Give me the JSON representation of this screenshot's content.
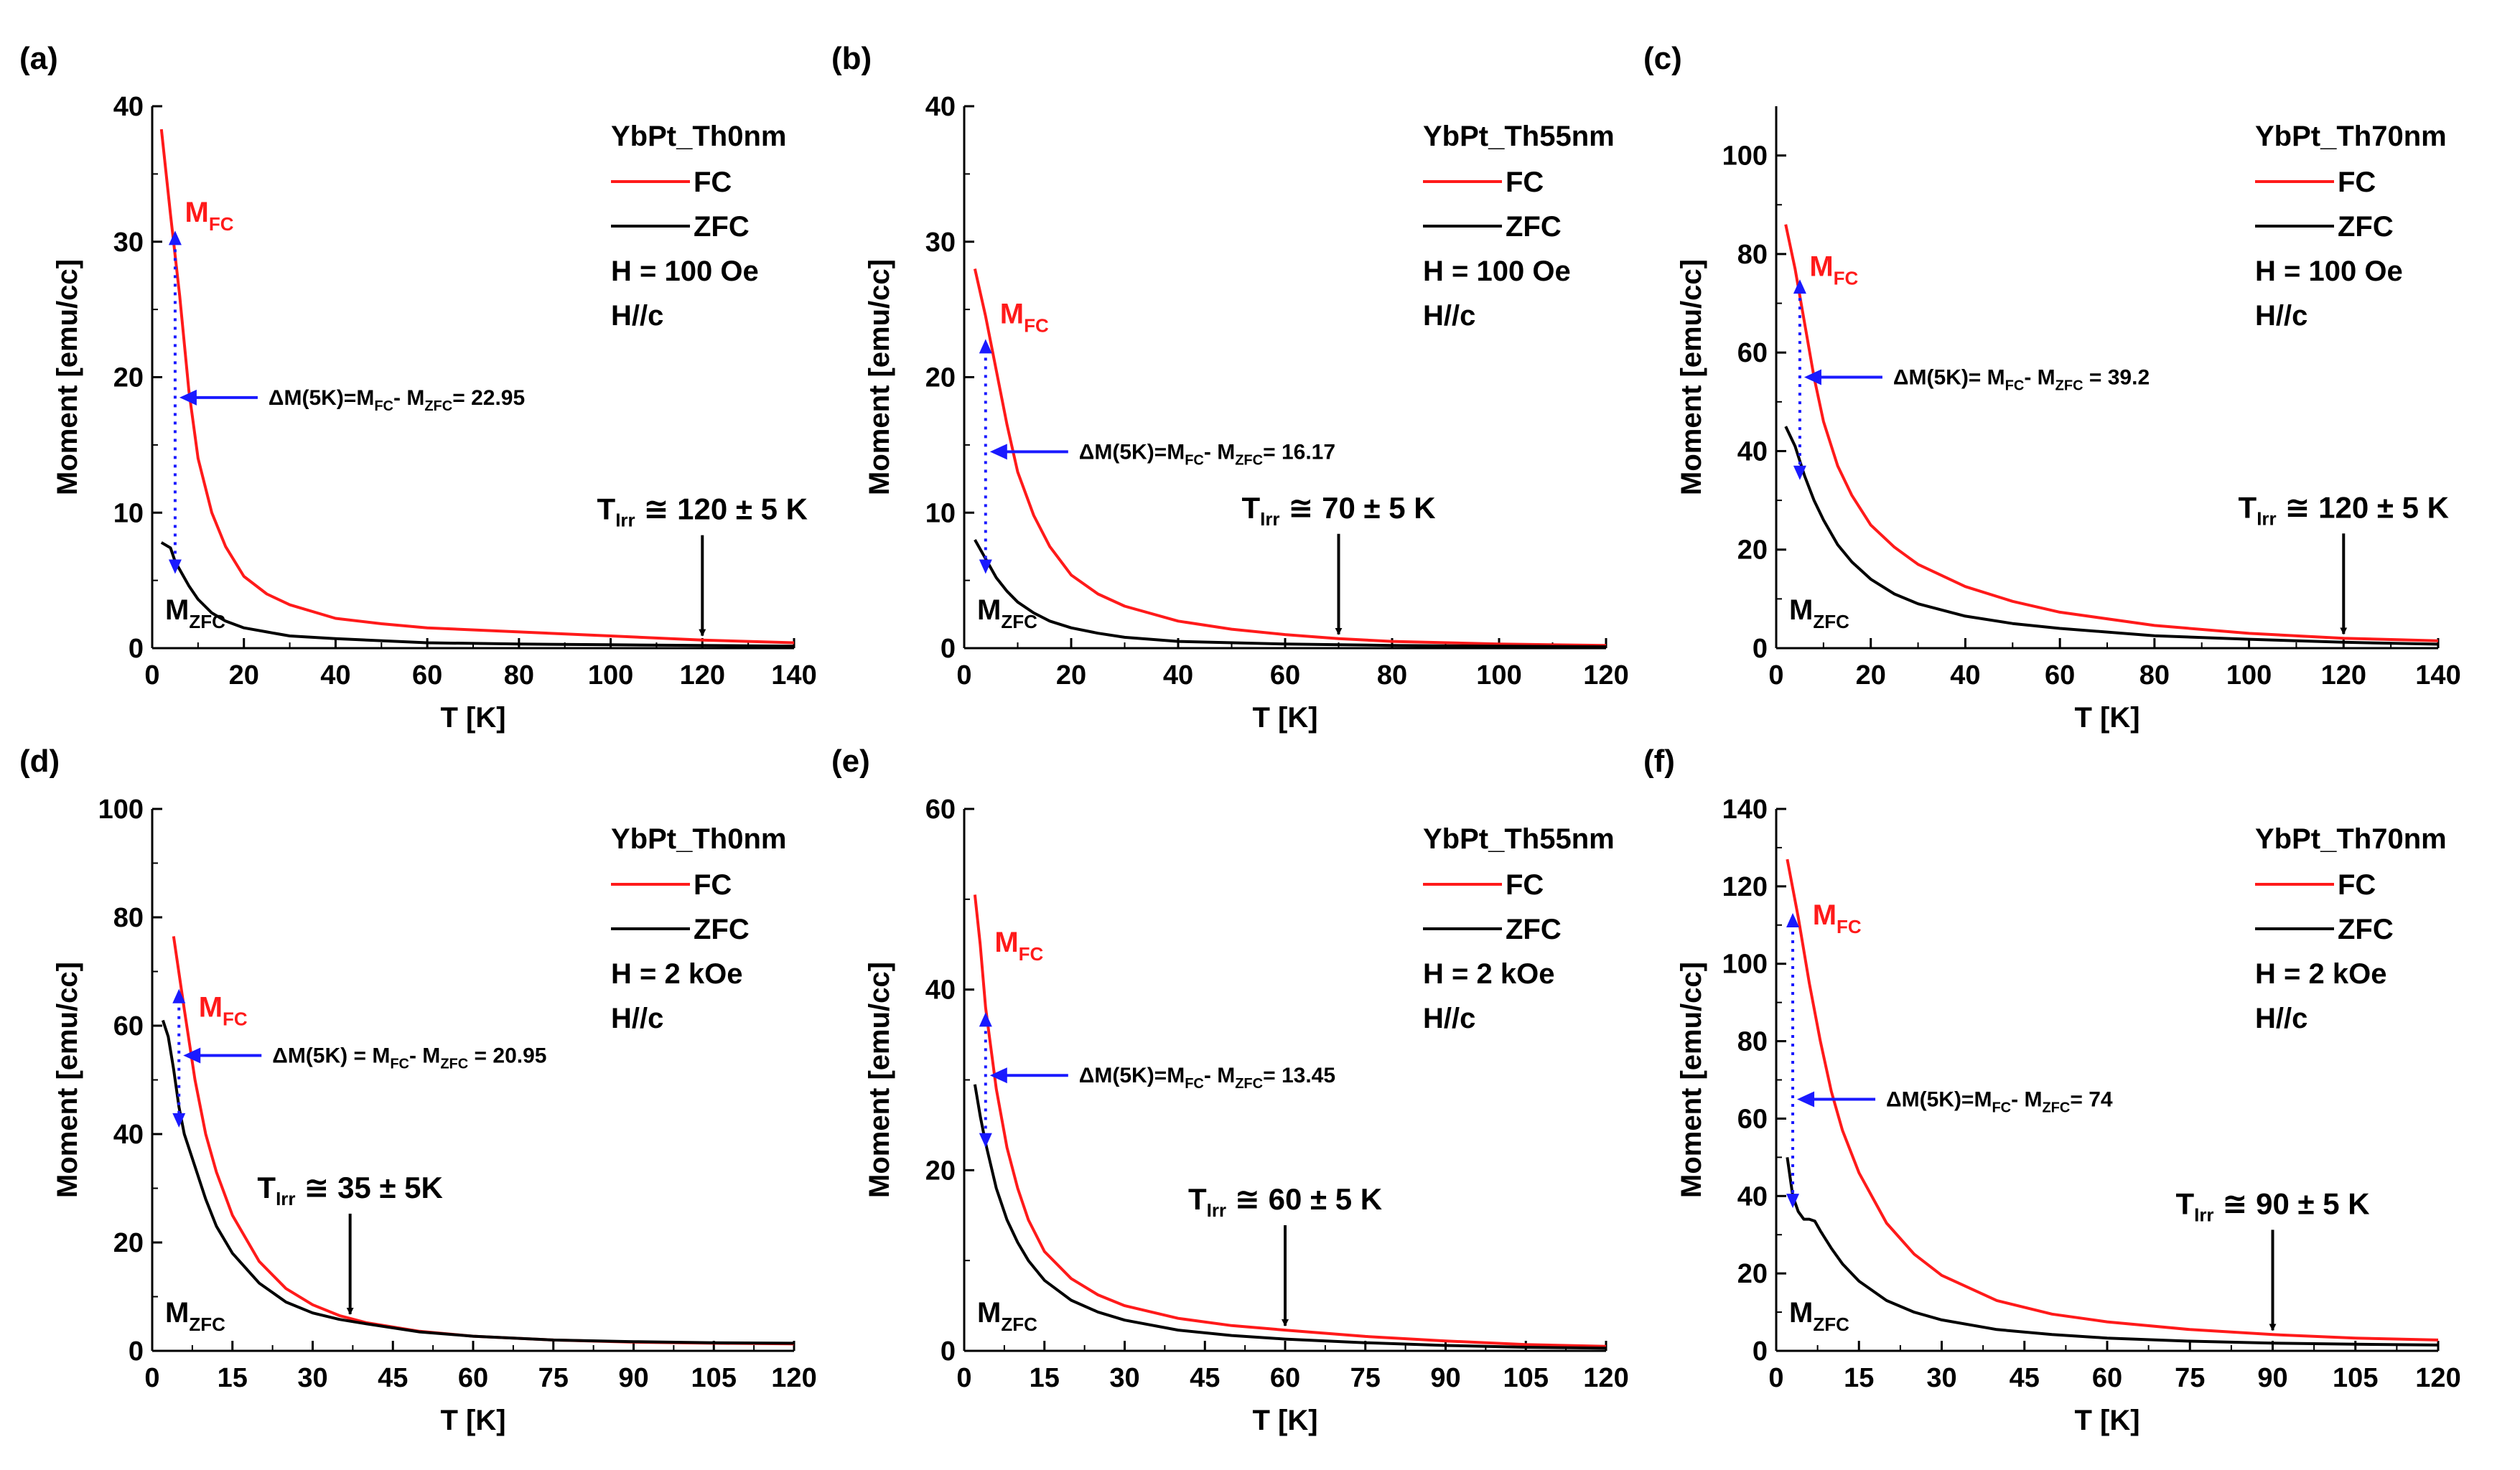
{
  "figure": {
    "panel_count": 6
  },
  "chart_data": [
    {
      "panel": "(a)",
      "type": "line",
      "ylabel": "Moment [emu/cc]",
      "xlabel": "T [K]",
      "xlim": [
        0,
        140
      ],
      "ylim": [
        0,
        40
      ],
      "xticks": [
        0,
        20,
        40,
        60,
        80,
        100,
        120,
        140
      ],
      "yticks": [
        0,
        10,
        20,
        30,
        40
      ],
      "legend": {
        "placement": "top-right",
        "title": "YbPt_Th0nm",
        "fc": "FC",
        "zfc": "ZFC",
        "field": "H = 100 Oe",
        "orientation": "H//c"
      },
      "series": [
        {
          "name": "FC",
          "color": "#ff1a1a",
          "x": [
            2,
            4,
            6,
            8,
            10,
            13,
            16,
            20,
            25,
            30,
            40,
            50,
            60,
            80,
            100,
            120,
            140
          ],
          "y": [
            38.3,
            32,
            26,
            19,
            14,
            10,
            7.5,
            5.3,
            4,
            3.2,
            2.2,
            1.8,
            1.5,
            1.2,
            0.9,
            0.6,
            0.4
          ]
        },
        {
          "name": "ZFC",
          "color": "#000000",
          "x": [
            2,
            4,
            5,
            6,
            7,
            8,
            10,
            13,
            16,
            20,
            25,
            30,
            40,
            60,
            80,
            100,
            120,
            140
          ],
          "y": [
            7.8,
            7.4,
            6.4,
            5.8,
            5.2,
            4.6,
            3.6,
            2.6,
            2.0,
            1.5,
            1.2,
            0.9,
            0.7,
            0.4,
            0.3,
            0.25,
            0.2,
            0.15
          ]
        }
      ],
      "labels": {
        "mfc_main": "M",
        "mfc_sub": "FC",
        "mzfc_main": "M",
        "mzfc_sub": "ZFC"
      },
      "delta": {
        "prefix": "ΔM(5K)=M",
        "fc_sub": "FC",
        "mid": "- M",
        "zfc_sub": "ZFC",
        "suffix": "= 22.95",
        "x": 5,
        "y_top": 30.5,
        "y_bottom": 5.8,
        "arrow_y": 18.5
      },
      "tirr": {
        "main": "T",
        "sub": "Irr",
        "value": " ≅ 120 ± 5 K",
        "x": 120
      }
    },
    {
      "panel": "(b)",
      "type": "line",
      "ylabel": "Moment [emu/cc]",
      "xlabel": "T [K]",
      "xlim": [
        0,
        120
      ],
      "ylim": [
        0,
        40
      ],
      "xticks": [
        0,
        20,
        40,
        60,
        80,
        100,
        120
      ],
      "yticks": [
        0,
        10,
        20,
        30,
        40
      ],
      "legend": {
        "placement": "top-right",
        "title": "YbPt_Th55nm",
        "fc": "FC",
        "zfc": "ZFC",
        "field": "H = 100 Oe",
        "orientation": "H//c"
      },
      "series": [
        {
          "name": "FC",
          "color": "#ff1a1a",
          "x": [
            2,
            4,
            6,
            8,
            10,
            13,
            16,
            20,
            25,
            30,
            40,
            50,
            60,
            70,
            80,
            100,
            120
          ],
          "y": [
            28,
            24.5,
            20.5,
            16.5,
            13,
            9.8,
            7.5,
            5.4,
            4.0,
            3.1,
            2.0,
            1.4,
            1.0,
            0.7,
            0.5,
            0.3,
            0.2
          ]
        },
        {
          "name": "ZFC",
          "color": "#000000",
          "x": [
            2,
            4,
            6,
            8,
            10,
            13,
            16,
            20,
            25,
            30,
            40,
            60,
            80,
            100,
            120
          ],
          "y": [
            8,
            6.6,
            5.2,
            4.2,
            3.4,
            2.6,
            2.0,
            1.5,
            1.1,
            0.8,
            0.5,
            0.3,
            0.2,
            0.15,
            0.1
          ]
        }
      ],
      "labels": {
        "mfc_main": "M",
        "mfc_sub": "FC",
        "mzfc_main": "M",
        "mzfc_sub": "ZFC"
      },
      "delta": {
        "prefix": "ΔM(5K)=M",
        "fc_sub": "FC",
        "mid": "- M",
        "zfc_sub": "ZFC",
        "suffix": "= 16.17",
        "x": 4,
        "y_top": 22.5,
        "y_bottom": 5.8,
        "arrow_y": 14.5
      },
      "tirr": {
        "main": "T",
        "sub": "Irr",
        "value": " ≅ 70 ± 5 K",
        "x": 70
      }
    },
    {
      "panel": "(c)",
      "type": "line",
      "ylabel": "Moment [emu/cc]",
      "xlabel": "T [K]",
      "xlim": [
        0,
        140
      ],
      "ylim": [
        0,
        110
      ],
      "xticks": [
        0,
        20,
        40,
        60,
        80,
        100,
        120,
        140
      ],
      "yticks": [
        0,
        20,
        40,
        60,
        80,
        100
      ],
      "legend": {
        "placement": "top-right",
        "title": "YbPt_Th70nm",
        "fc": "FC",
        "zfc": "ZFC",
        "field": "H = 100 Oe",
        "orientation": "H//c"
      },
      "series": [
        {
          "name": "FC",
          "color": "#ff1a1a",
          "x": [
            2,
            4,
            6,
            8,
            10,
            13,
            16,
            20,
            25,
            30,
            40,
            50,
            60,
            80,
            100,
            120,
            140
          ],
          "y": [
            86,
            77,
            66,
            55,
            46,
            37,
            31,
            25,
            20.5,
            17,
            12.5,
            9.5,
            7.3,
            4.6,
            3.0,
            2.0,
            1.5
          ]
        },
        {
          "name": "ZFC",
          "color": "#000000",
          "x": [
            2,
            4,
            6,
            8,
            10,
            13,
            16,
            20,
            25,
            30,
            40,
            50,
            60,
            80,
            100,
            120,
            140
          ],
          "y": [
            45,
            41,
            35,
            30,
            26,
            21,
            17.5,
            14,
            11,
            9,
            6.5,
            5,
            4,
            2.5,
            1.8,
            1.2,
            0.8
          ]
        }
      ],
      "labels": {
        "mfc_main": "M",
        "mfc_sub": "FC",
        "mzfc_main": "M",
        "mzfc_sub": "ZFC"
      },
      "delta": {
        "prefix": "ΔM(5K)= M",
        "fc_sub": "FC",
        "mid": "- M",
        "zfc_sub": "ZFC",
        "suffix": " = 39.2",
        "x": 5,
        "y_top": 74,
        "y_bottom": 35,
        "arrow_y": 55
      },
      "tirr": {
        "main": "T",
        "sub": "Irr",
        "value": " ≅ 120 ± 5 K",
        "x": 120
      }
    },
    {
      "panel": "(d)",
      "type": "line",
      "ylabel": "Moment [emu/cc]",
      "xlabel": "T [K]",
      "xlim": [
        0,
        120
      ],
      "ylim": [
        0,
        100
      ],
      "xticks": [
        0,
        15,
        30,
        45,
        60,
        75,
        90,
        105,
        120
      ],
      "yticks": [
        0,
        20,
        40,
        60,
        80,
        100
      ],
      "legend": {
        "placement": "top-right",
        "title": "YbPt_Th0nm",
        "fc": "FC",
        "zfc": "ZFC",
        "field": "H = 2 kOe",
        "orientation": "H//c"
      },
      "series": [
        {
          "name": "FC",
          "color": "#ff1a1a",
          "x": [
            4,
            6,
            8,
            10,
            12,
            15,
            20,
            25,
            30,
            35,
            40,
            50,
            60,
            75,
            90,
            105,
            120
          ],
          "y": [
            76.5,
            63,
            50,
            40,
            33,
            25,
            16.5,
            11.5,
            8.5,
            6.5,
            5.2,
            3.6,
            2.7,
            2.0,
            1.6,
            1.4,
            1.3
          ]
        },
        {
          "name": "ZFC",
          "color": "#000000",
          "x": [
            2,
            3,
            4,
            5,
            6,
            8,
            10,
            12,
            15,
            20,
            25,
            30,
            35,
            40,
            50,
            60,
            75,
            90,
            105,
            120
          ],
          "y": [
            61,
            58,
            52,
            45,
            40,
            34,
            28,
            23,
            18,
            12.5,
            9,
            7,
            5.8,
            5,
            3.5,
            2.7,
            2.0,
            1.7,
            1.5,
            1.4
          ]
        }
      ],
      "labels": {
        "mfc_main": "M",
        "mfc_sub": "FC",
        "mzfc_main": "M",
        "mzfc_sub": "ZFC"
      },
      "delta": {
        "prefix": "ΔM(5K) = M",
        "fc_sub": "FC",
        "mid": "- M",
        "zfc_sub": "ZFC",
        "suffix": " = 20.95",
        "x": 5,
        "y_top": 66,
        "y_bottom": 42,
        "arrow_y": 54.5
      },
      "tirr": {
        "main": "T",
        "sub": "Irr",
        "value": " ≅ 35 ± 5K",
        "x": 37
      }
    },
    {
      "panel": "(e)",
      "type": "line",
      "ylabel": "Moment [emu/cc]",
      "xlabel": "T [K]",
      "xlim": [
        0,
        120
      ],
      "ylim": [
        0,
        60
      ],
      "xticks": [
        0,
        15,
        30,
        45,
        60,
        75,
        90,
        105,
        120
      ],
      "yticks": [
        0,
        20,
        40,
        60
      ],
      "legend": {
        "placement": "top-right",
        "title": "YbPt_Th55nm",
        "fc": "FC",
        "zfc": "ZFC",
        "field": "H = 2 kOe",
        "orientation": "H//c"
      },
      "series": [
        {
          "name": "FC",
          "color": "#ff1a1a",
          "x": [
            2,
            3,
            4,
            6,
            8,
            10,
            12,
            15,
            20,
            25,
            30,
            40,
            50,
            60,
            75,
            90,
            105,
            120
          ],
          "y": [
            50.5,
            45,
            38,
            29,
            22.5,
            18,
            14.5,
            11,
            8,
            6.2,
            5,
            3.6,
            2.8,
            2.3,
            1.6,
            1.1,
            0.7,
            0.5
          ]
        },
        {
          "name": "ZFC",
          "color": "#000000",
          "x": [
            2,
            3,
            4,
            6,
            8,
            10,
            12,
            15,
            20,
            25,
            30,
            40,
            50,
            60,
            75,
            90,
            105,
            120
          ],
          "y": [
            29.5,
            26,
            23,
            18,
            14.5,
            12,
            10,
            7.8,
            5.6,
            4.3,
            3.4,
            2.3,
            1.7,
            1.3,
            0.9,
            0.6,
            0.4,
            0.3
          ]
        }
      ],
      "labels": {
        "mfc_main": "M",
        "mfc_sub": "FC",
        "mzfc_main": "M",
        "mzfc_sub": "ZFC"
      },
      "delta": {
        "prefix": "ΔM(5K)=M",
        "fc_sub": "FC",
        "mid": "- M",
        "zfc_sub": "ZFC",
        "suffix": "= 13.45",
        "x": 4,
        "y_top": 37,
        "y_bottom": 23,
        "arrow_y": 30.5
      },
      "tirr": {
        "main": "T",
        "sub": "Irr",
        "value": " ≅ 60 ± 5 K",
        "x": 60
      }
    },
    {
      "panel": "(f)",
      "type": "line",
      "ylabel": "Moment [emu/cc]",
      "xlabel": "T [K]",
      "xlim": [
        0,
        120
      ],
      "ylim": [
        0,
        140
      ],
      "xticks": [
        0,
        15,
        30,
        45,
        60,
        75,
        90,
        105,
        120
      ],
      "yticks": [
        0,
        20,
        40,
        60,
        80,
        100,
        120,
        140
      ],
      "legend": {
        "placement": "top-right",
        "title": "YbPt_Th70nm",
        "fc": "FC",
        "zfc": "ZFC",
        "field": "H = 2 kOe",
        "orientation": "H//c"
      },
      "series": [
        {
          "name": "FC",
          "color": "#ff1a1a",
          "x": [
            2,
            4,
            6,
            8,
            10,
            12,
            15,
            20,
            25,
            30,
            40,
            50,
            60,
            75,
            90,
            105,
            120
          ],
          "y": [
            127,
            112,
            95,
            80,
            67,
            57,
            46,
            33,
            25,
            19.5,
            13,
            9.5,
            7.5,
            5.5,
            4.2,
            3.3,
            2.8
          ]
        },
        {
          "name": "ZFC",
          "color": "#000000",
          "x": [
            2,
            3,
            4,
            5,
            6,
            7,
            8,
            10,
            12,
            15,
            20,
            25,
            30,
            40,
            50,
            60,
            75,
            90,
            105,
            120
          ],
          "y": [
            50,
            40,
            36,
            34,
            34,
            33.5,
            31,
            26.5,
            22.5,
            18,
            13,
            10,
            8,
            5.5,
            4.2,
            3.3,
            2.5,
            2.0,
            1.7,
            1.5
          ]
        }
      ],
      "labels": {
        "mfc_main": "M",
        "mfc_sub": "FC",
        "mzfc_main": "M",
        "mzfc_sub": "ZFC"
      },
      "delta": {
        "prefix": "ΔM(5K)=M",
        "fc_sub": "FC",
        "mid": "- M",
        "zfc_sub": "ZFC",
        "suffix": "= 74",
        "x": 3,
        "y_top": 112,
        "y_bottom": 38,
        "arrow_y": 65
      },
      "tirr": {
        "main": "T",
        "sub": "Irr",
        "value": " ≅ 90 ± 5 K",
        "x": 90
      }
    }
  ]
}
